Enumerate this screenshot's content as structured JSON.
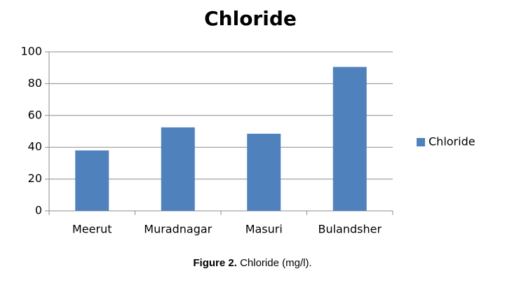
{
  "chart_data": {
    "type": "bar",
    "title": "Chloride",
    "categories": [
      "Meerut",
      "Muradnagar",
      "Masuri",
      "Bulandsher"
    ],
    "series": [
      {
        "name": "Chloride",
        "color": "#4f81bd",
        "values": [
          38,
          52.5,
          48.5,
          90.5
        ]
      }
    ],
    "ylim": [
      0,
      100
    ],
    "yticks": [
      0,
      20,
      40,
      60,
      80,
      100
    ],
    "grid": true,
    "legend": "right",
    "caption_label": "Figure 2.",
    "caption_text": "Chloride (mg/l)."
  }
}
